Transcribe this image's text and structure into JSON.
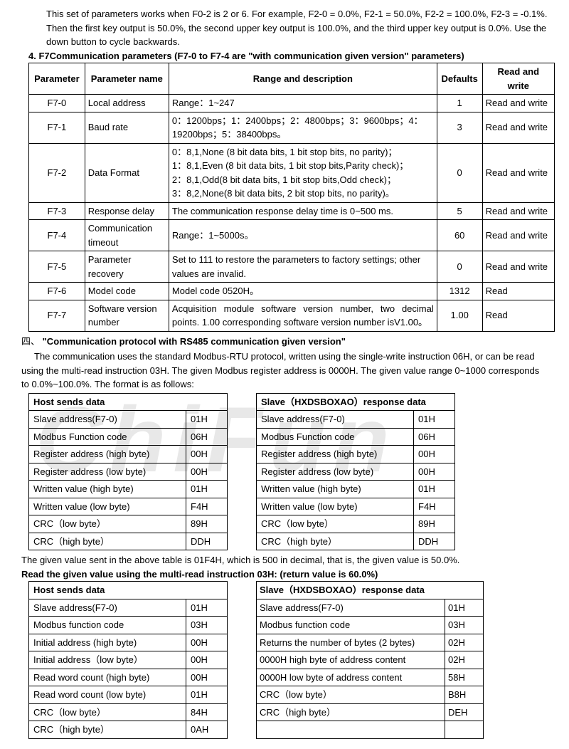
{
  "intro_text": "This set of parameters works when F0-2 is 2 or 6. For example, F2-0 = 0.0%, F2-1 = 50.0%, F2-2 = 100.0%, F2-3 = -0.1%. Then the first key output is 50.0%, the second upper key output is 100.0%, and the third upper key output is 0.0%. Use the down button to cycle backwards.",
  "section4_num": "4.",
  "section4_title": "F7Communication parameters (F7-0 to F7-4 are \"with communication given version\" parameters)",
  "param_headers": [
    "Parameter",
    "Parameter name",
    "Range and description",
    "Defaults",
    "Read and write"
  ],
  "param_rows": [
    [
      "F7-0",
      "Local address",
      "Range：1~247",
      "1",
      "Read and write"
    ],
    [
      "F7-1",
      "Baud rate",
      "0：1200bps；1：2400bps；2：4800bps；3：9600bps；4：19200bps；5：38400bps。",
      "3",
      "Read and write"
    ],
    [
      "F7-2",
      "Data Format",
      "0：8,1,None (8 bit data bits, 1 bit stop bits, no parity)；\n1：8,1,Even (8 bit data bits, 1 bit stop bits,Parity check)；\n2：8,1,Odd(8 bit data bits, 1 bit stop bits,Odd check)；\n3：8,2,None(8 bit data bits, 2 bit stop bits, no parity)。",
      "0",
      "Read and write"
    ],
    [
      "F7-3",
      "Response delay",
      "The communication response delay time is 0~500 ms.",
      "5",
      "Read and write"
    ],
    [
      "F7-4",
      "Communication timeout",
      "Range：1~5000s。",
      "60",
      "Read and write"
    ],
    [
      "F7-5",
      "Parameter recovery",
      "Set to 111 to restore the parameters to factory settings; other values are invalid.",
      "0",
      "Read and write"
    ],
    [
      "F7-6",
      "Model code",
      "Model code 0520H。",
      "1312",
      "Read"
    ],
    [
      "F7-7",
      "Software version number",
      "Acquisition module software version number, two decimal points. 1.00 corresponding software version number isV1.00。",
      "1.00",
      "Read"
    ]
  ],
  "section_comm_num": "四、",
  "section_comm_title": "\"Communication protocol with RS485 communication given version\"",
  "comm_para": "The communication uses the standard Modbus-RTU protocol, written using the single-write instruction 06H, or can be read using the multi-read instruction 03H. The given Modbus register address is 0000H. The given value range 0~1000 corresponds to 0.0%~100.0%. The format is as follows:",
  "host_sends": "Host sends data",
  "slave_resp": "Slave（HXDSBOXAO）response data",
  "table1_left": [
    [
      "Slave address(F7-0)",
      "01H"
    ],
    [
      "Modbus Function code",
      "06H"
    ],
    [
      "Register address (high byte)",
      "00H"
    ],
    [
      "Register address (low byte)",
      "00H"
    ],
    [
      "Written value (high byte)",
      "01H"
    ],
    [
      "Written value (low byte)",
      "F4H"
    ],
    [
      "CRC（low byte）",
      "89H"
    ],
    [
      "CRC（high byte）",
      "DDH"
    ]
  ],
  "table1_right": [
    [
      "Slave address(F7-0)",
      "01H"
    ],
    [
      "Modbus Function code",
      "06H"
    ],
    [
      "Register address (high byte)",
      "00H"
    ],
    [
      "Register address (low byte)",
      "00H"
    ],
    [
      "Written value (high byte)",
      "01H"
    ],
    [
      "Written value (low byte)",
      "F4H"
    ],
    [
      "CRC（low byte）",
      "89H"
    ],
    [
      "CRC（high byte）",
      "DDH"
    ]
  ],
  "given_note": "The given value sent in the above table is 01F4H, which is 500 in decimal, that is, the given value is 50.0%.",
  "read_title": "Read the given value using the multi-read instruction 03H: (return value is 60.0%)",
  "table2_left": [
    [
      "Slave address(F7-0)",
      "01H"
    ],
    [
      "Modbus function code",
      "03H"
    ],
    [
      "Initial address (high byte)",
      "00H"
    ],
    [
      "Initial address（low byte）",
      "00H"
    ],
    [
      "Read word count (high byte)",
      "00H"
    ],
    [
      "Read word count (low byte)",
      "01H"
    ],
    [
      "CRC（low byte）",
      "84H"
    ],
    [
      "CRC（high byte）",
      "0AH"
    ]
  ],
  "table2_right": [
    [
      "Slave address(F7-0)",
      "01H"
    ],
    [
      "Modbus function code",
      "03H"
    ],
    [
      "Returns the number of bytes (2 bytes)",
      "02H"
    ],
    [
      "0000H high byte of address content",
      "02H"
    ],
    [
      "0000H low byte of address content",
      "58H"
    ],
    [
      "CRC（low byte）",
      "B8H"
    ],
    [
      "CRC（high byte）",
      "DEH"
    ],
    [
      "",
      ""
    ]
  ]
}
